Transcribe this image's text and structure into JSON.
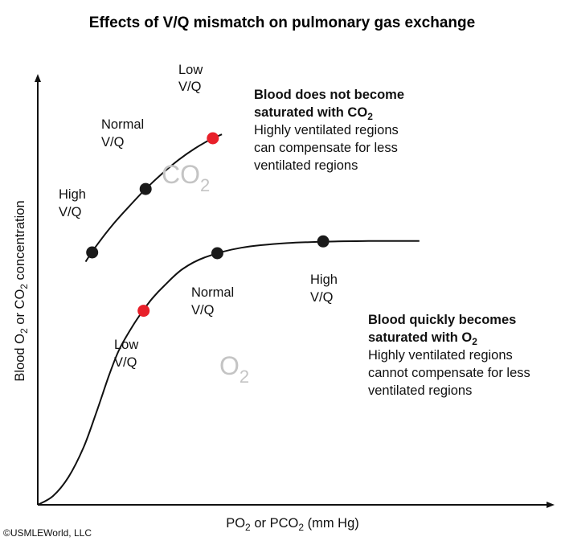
{
  "chart_data": {
    "type": "line",
    "title": "Effects of V/Q mismatch on pulmonary gas exchange",
    "xlabel": {
      "pre": "PO",
      "sub1": "2",
      "mid": " or PCO",
      "sub2": "2",
      "post": " (mm Hg)"
    },
    "ylabel": {
      "pre": "Blood O",
      "sub1": "2",
      "mid": " or CO",
      "sub2": "2",
      "post": " concentration"
    },
    "xlim": [
      0,
      100
    ],
    "ylim": [
      0,
      100
    ],
    "ticks": "none",
    "series": [
      {
        "name": "CO2",
        "label_main": "CO",
        "label_sub": "2",
        "color": "#111111",
        "curve_x": [
          9.4,
          11.3,
          14.5,
          17.9,
          21.2,
          24.5,
          27.7,
          30.9,
          34.1,
          36.2
        ],
        "curve_y": [
          57.5,
          60.9,
          65.9,
          70.5,
          74.7,
          78.4,
          81.6,
          84.3,
          86.5,
          87.6
        ],
        "points": [
          {
            "label1": "High",
            "label2": "V/Q",
            "x": 10.7,
            "y": 59.7,
            "color": "#1a1a1a"
          },
          {
            "label1": "Normal",
            "label2": "V/Q",
            "x": 21.2,
            "y": 74.7,
            "color": "#1a1a1a"
          },
          {
            "label1": "Low",
            "label2": "V/Q",
            "x": 34.4,
            "y": 86.7,
            "color": "#e8202a"
          }
        ],
        "annotation": {
          "line1_main": "Blood does not become",
          "line2_main": "saturated with CO",
          "line2_sub": "2",
          "line3": "Highly ventilated regions",
          "line4": "can compensate for less",
          "line5": "ventilated regions"
        }
      },
      {
        "name": "O2",
        "label_main": "O",
        "label_sub": "2",
        "color": "#111111",
        "curve_x": [
          0,
          3,
          6,
          9,
          11.5,
          14,
          16,
          18.5,
          20.5,
          22.5,
          25,
          28.5,
          33,
          40,
          49,
          59,
          65,
          70,
          75
        ],
        "curve_y": [
          0,
          2.1,
          6.5,
          13.6,
          21.8,
          30.6,
          36.7,
          42.0,
          45.6,
          48.8,
          52.0,
          55.8,
          58.6,
          60.8,
          61.9,
          62.3,
          62.4,
          62.4,
          62.4
        ],
        "points": [
          {
            "label1": "Low",
            "label2": "V/Q",
            "x": 20.8,
            "y": 45.9,
            "color": "#e8202a"
          },
          {
            "label1": "Normal",
            "label2": "V/Q",
            "x": 35.3,
            "y": 59.5,
            "color": "#1a1a1a"
          },
          {
            "label1": "High",
            "label2": "V/Q",
            "x": 56.1,
            "y": 62.3,
            "color": "#1a1a1a"
          }
        ],
        "annotation": {
          "line1_main": "Blood quickly becomes",
          "line2_main": "saturated with O",
          "line2_sub": "2",
          "line3": "Highly ventilated regions",
          "line4": "cannot compensate for less",
          "line5": "ventilated regions"
        }
      }
    ]
  },
  "copyright": "©USMLEWorld, LLC"
}
